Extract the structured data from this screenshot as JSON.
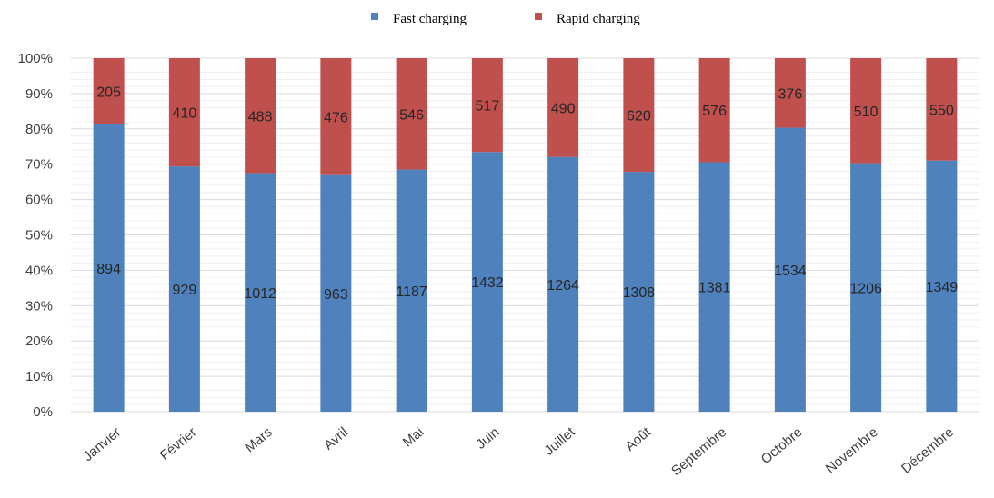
{
  "chart_data": {
    "type": "bar",
    "stacked": true,
    "normalized": true,
    "categories": [
      "Janvier",
      "Février",
      "Mars",
      "Avril",
      "Mai",
      "Juin",
      "Juillet",
      "Août",
      "Septembre",
      "Octobre",
      "Novembre",
      "Décembre"
    ],
    "series": [
      {
        "name": "Fast charging",
        "color": "#4f81bd",
        "values": [
          894,
          929,
          1012,
          963,
          1187,
          1432,
          1264,
          1308,
          1381,
          1534,
          1206,
          1349
        ]
      },
      {
        "name": "Rapid charging",
        "color": "#c0504d",
        "values": [
          205,
          410,
          488,
          476,
          546,
          517,
          490,
          620,
          576,
          376,
          510,
          550
        ]
      }
    ],
    "yticks": [
      "0%",
      "10%",
      "20%",
      "30%",
      "40%",
      "50%",
      "60%",
      "70%",
      "80%",
      "90%",
      "100%"
    ],
    "ylim": [
      0,
      100
    ],
    "grid": true,
    "legend_position": "top-center",
    "title": "",
    "xlabel": "",
    "ylabel": ""
  }
}
